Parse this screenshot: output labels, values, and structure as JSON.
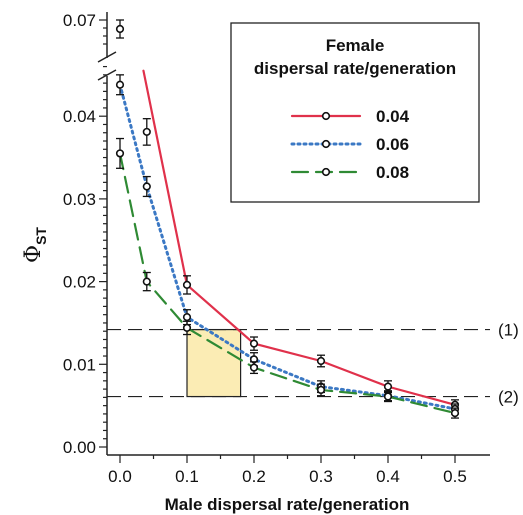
{
  "chart_data": {
    "type": "line",
    "xlabel": "Male dispersal rate/generation",
    "ylabel_symbol": "Φ",
    "ylabel_sub": "ST",
    "x_ticks": [
      "0.0",
      "0.1",
      "0.2",
      "0.3",
      "0.4",
      "0.5"
    ],
    "y_ticks": [
      "0.00",
      "0.01",
      "0.02",
      "0.03",
      "0.04"
    ],
    "y_break_tick": "0.07",
    "xlim": [
      -0.04,
      0.55
    ],
    "ylim": [
      0,
      0.046
    ],
    "legend": {
      "title_line1": "Female",
      "title_line2": "dispersal rate/generation",
      "placement": "top-right"
    },
    "series": [
      {
        "name": "0.04",
        "color": "#e0314b",
        "dash": "solid",
        "curve_x": [
          0.035,
          0.1,
          0.2,
          0.3,
          0.4,
          0.5
        ],
        "curve_y": [
          0.0455,
          0.0196,
          0.0125,
          0.0104,
          0.0073,
          0.0051
        ],
        "points": [
          {
            "x": 0.04,
            "y": 0.0381,
            "err": 0.0016
          },
          {
            "x": 0.1,
            "y": 0.0196,
            "err": 0.0011
          },
          {
            "x": 0.2,
            "y": 0.0125,
            "err": 0.0008
          },
          {
            "x": 0.3,
            "y": 0.0104,
            "err": 0.0007
          },
          {
            "x": 0.4,
            "y": 0.0073,
            "err": 0.0007
          },
          {
            "x": 0.5,
            "y": 0.0051,
            "err": 0.0006
          }
        ]
      },
      {
        "name": "0.06",
        "color": "#3b78c4",
        "dash": "dotted",
        "curve_x": [
          0.0,
          0.04,
          0.1,
          0.2,
          0.3,
          0.4,
          0.5
        ],
        "curve_y": [
          0.0438,
          0.0315,
          0.0157,
          0.0106,
          0.0073,
          0.0062,
          0.0046
        ],
        "points": [
          {
            "x": 0.0,
            "y": 0.0438,
            "err": 0.0012
          },
          {
            "x": 0.04,
            "y": 0.0315,
            "err": 0.0012
          },
          {
            "x": 0.1,
            "y": 0.0157,
            "err": 0.0009
          },
          {
            "x": 0.2,
            "y": 0.0106,
            "err": 0.0008
          },
          {
            "x": 0.3,
            "y": 0.0073,
            "err": 0.0007
          },
          {
            "x": 0.4,
            "y": 0.0062,
            "err": 0.0006
          },
          {
            "x": 0.5,
            "y": 0.0046,
            "err": 0.0006
          }
        ]
      },
      {
        "name": "0.08",
        "color": "#2f8a34",
        "dash": "dashed",
        "curve_x": [
          0.0,
          0.04,
          0.1,
          0.2,
          0.3,
          0.4,
          0.5
        ],
        "curve_y": [
          0.0355,
          0.02,
          0.0144,
          0.0096,
          0.0069,
          0.0061,
          0.0041
        ],
        "points": [
          {
            "x": 0.0,
            "y": 0.0355,
            "err": 0.0018
          },
          {
            "x": 0.04,
            "y": 0.02,
            "err": 0.0011
          },
          {
            "x": 0.1,
            "y": 0.0144,
            "err": 0.0008
          },
          {
            "x": 0.2,
            "y": 0.0096,
            "err": 0.0007
          },
          {
            "x": 0.3,
            "y": 0.0069,
            "err": 0.0007
          },
          {
            "x": 0.4,
            "y": 0.0061,
            "err": 0.0006
          },
          {
            "x": 0.5,
            "y": 0.0041,
            "err": 0.0006
          }
        ]
      }
    ],
    "break_point": {
      "x": 0.0,
      "y_label_value": 0.067
    },
    "reference_lines": [
      {
        "label": "(1)",
        "y": 0.0142
      },
      {
        "label": "(2)",
        "y": 0.0061
      }
    ],
    "shaded_region": {
      "x": [
        0.1,
        0.18
      ],
      "y": [
        0.0061,
        0.0142
      ],
      "color": "#fbecb4"
    }
  }
}
